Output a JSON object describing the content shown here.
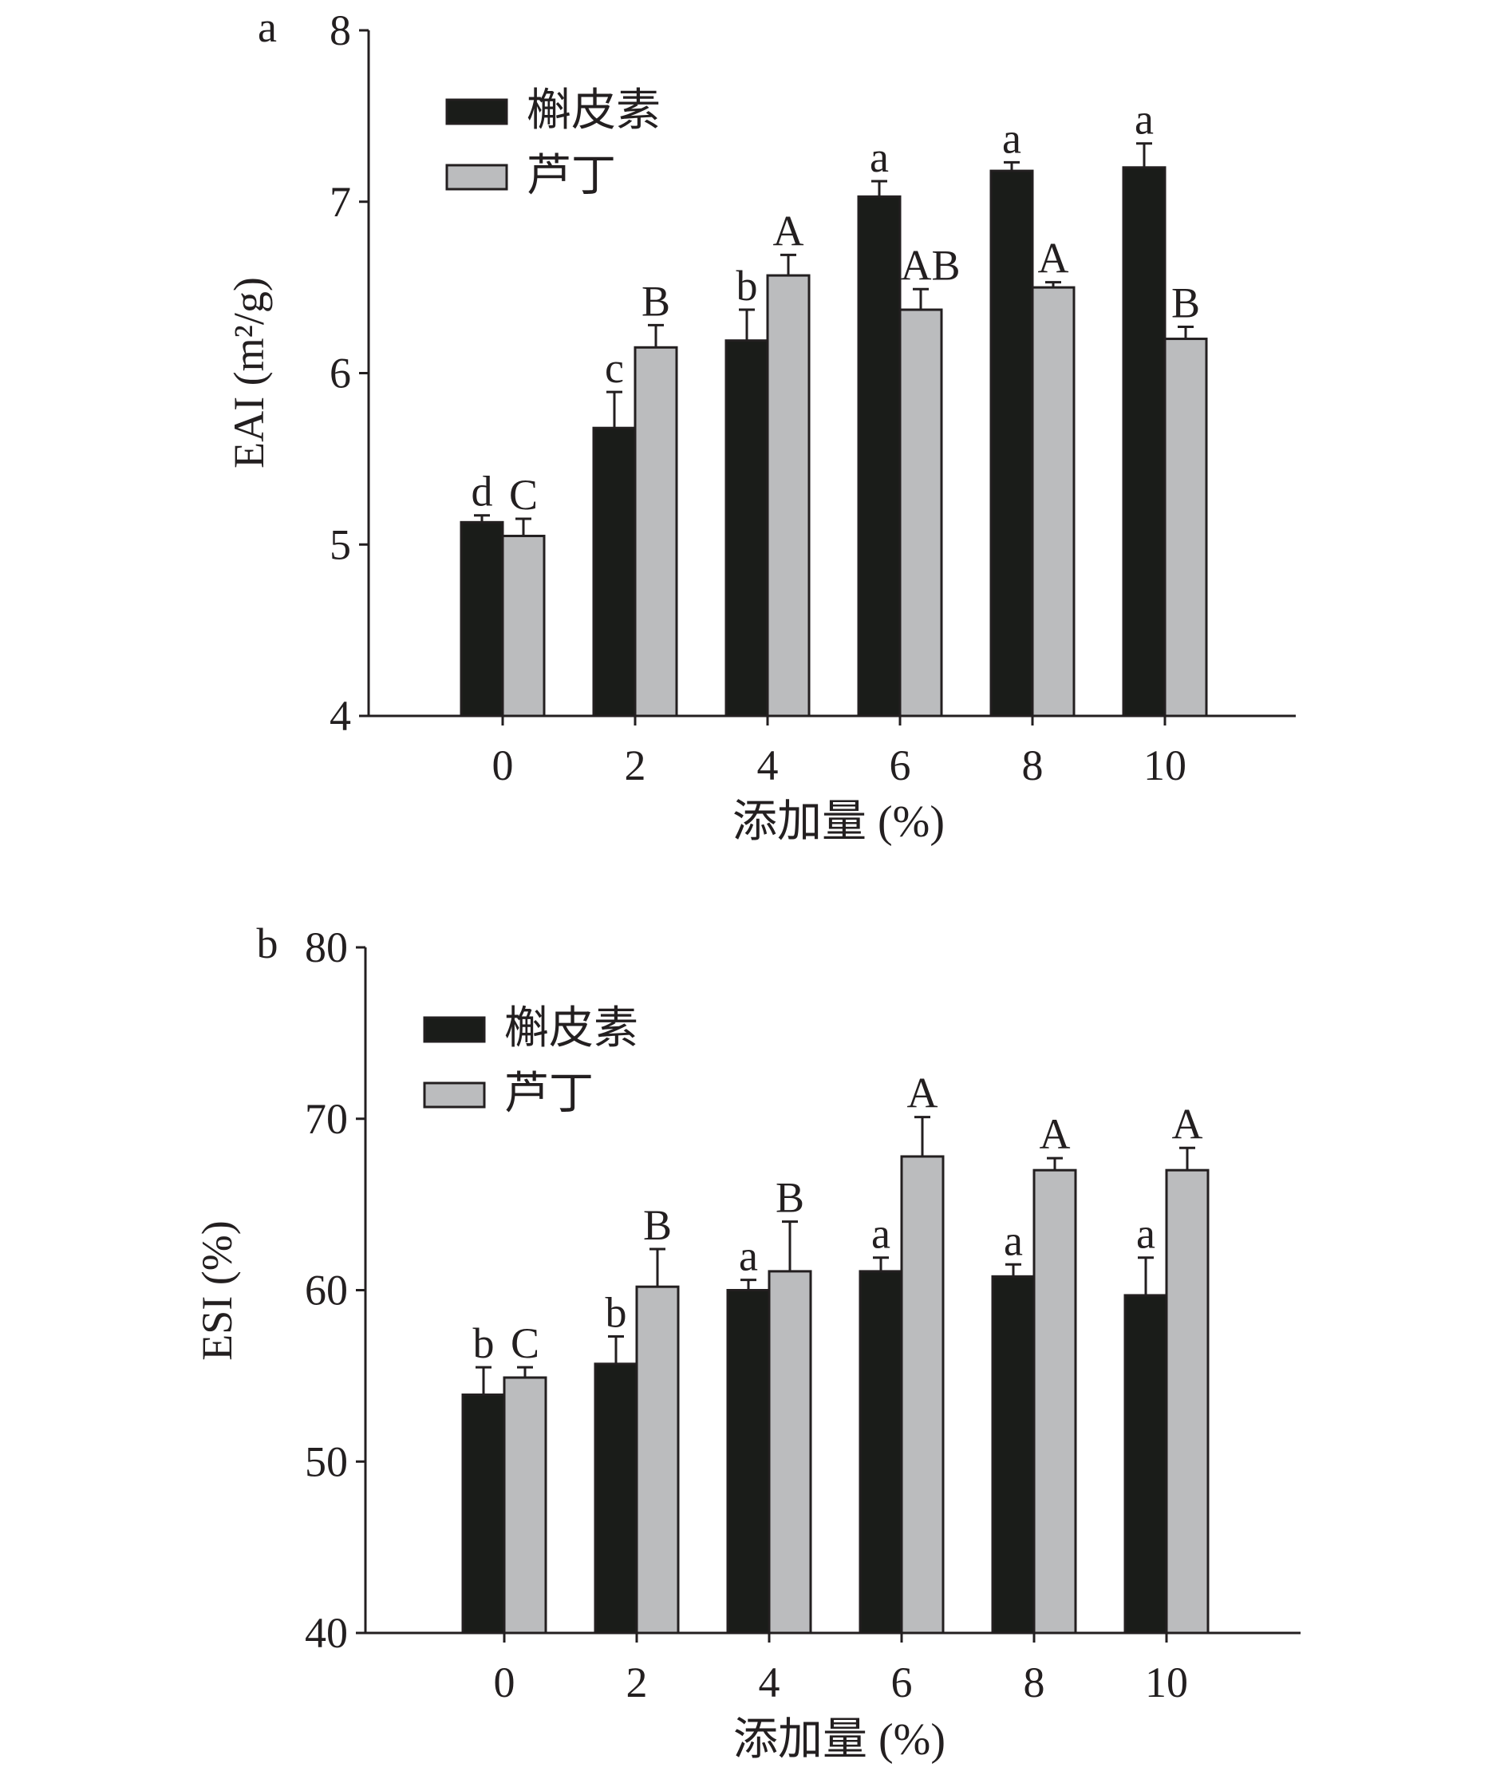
{
  "chart_data": [
    {
      "type": "bar",
      "panel_label": "a",
      "title": "",
      "xlabel": "添加量 (%)",
      "ylabel": "EAI (m²/g)",
      "ylim": [
        4,
        8
      ],
      "yticks": [
        4,
        5,
        6,
        7,
        8
      ],
      "categories": [
        "0",
        "2",
        "4",
        "6",
        "8",
        "10"
      ],
      "legend_position": "top-left",
      "series": [
        {
          "name": "槲皮素",
          "color": "#1a1c19",
          "values": [
            5.13,
            5.68,
            6.19,
            7.03,
            7.18,
            7.2
          ],
          "error_upper": [
            5.17,
            5.89,
            6.37,
            7.12,
            7.23,
            7.34
          ],
          "letters": [
            "d",
            "c",
            "b",
            "a",
            "a",
            "a"
          ]
        },
        {
          "name": "芦丁",
          "color": "#bbbcbe",
          "values": [
            5.05,
            6.15,
            6.57,
            6.37,
            6.5,
            6.2
          ],
          "error_upper": [
            5.15,
            6.28,
            6.69,
            6.49,
            6.53,
            6.27
          ],
          "letters": [
            "C",
            "B",
            "A",
            "AB",
            "A",
            "B"
          ]
        }
      ]
    },
    {
      "type": "bar",
      "panel_label": "b",
      "title": "",
      "xlabel": "添加量 (%)",
      "ylabel": "ESI (%)",
      "ylim": [
        40,
        80
      ],
      "yticks": [
        40,
        50,
        60,
        70,
        80
      ],
      "categories": [
        "0",
        "2",
        "4",
        "6",
        "8",
        "10"
      ],
      "legend_position": "top-left",
      "series": [
        {
          "name": "槲皮素",
          "color": "#1a1c19",
          "values": [
            53.9,
            55.7,
            60.0,
            61.1,
            60.8,
            59.7
          ],
          "error_upper": [
            55.5,
            57.3,
            60.6,
            61.9,
            61.5,
            61.9
          ],
          "letters": [
            "b",
            "b",
            "a",
            "a",
            "a",
            "a"
          ]
        },
        {
          "name": "芦丁",
          "color": "#bbbcbe",
          "values": [
            54.9,
            60.2,
            61.1,
            67.8,
            67.0,
            67.0
          ],
          "error_upper": [
            55.5,
            62.4,
            64.0,
            70.1,
            67.7,
            68.3
          ],
          "letters": [
            "C",
            "B",
            "B",
            "A",
            "A",
            "A"
          ]
        }
      ]
    }
  ]
}
